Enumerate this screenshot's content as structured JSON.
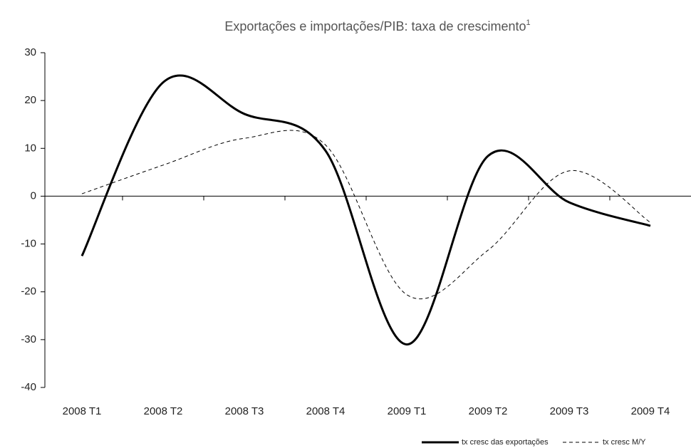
{
  "chart_data": {
    "type": "line",
    "title": "Exportações e importações/PIB: taxa de crescimento",
    "title_superscript": "1",
    "categories": [
      "2008 T1",
      "2008 T2",
      "2008 T3",
      "2008 T4",
      "2009 T1",
      "2009 T2",
      "2009 T3",
      "2009 T4"
    ],
    "series": [
      {
        "name": "tx cresc das exportações",
        "color": "#000000",
        "dash": false,
        "values": [
          -12.5,
          23.8,
          17.2,
          9.5,
          -31,
          8.4,
          -1.3,
          -6.2
        ]
      },
      {
        "name": "tx cresc M/Y",
        "color": "#000000",
        "dash": true,
        "values": [
          0.5,
          6.5,
          12.1,
          10.7,
          -20.6,
          -11.3,
          5.3,
          -5.5
        ]
      }
    ],
    "ylim": [
      -40,
      30
    ],
    "yticks": [
      -40,
      -30,
      -20,
      -10,
      0,
      10,
      20,
      30
    ],
    "smooth": true
  }
}
